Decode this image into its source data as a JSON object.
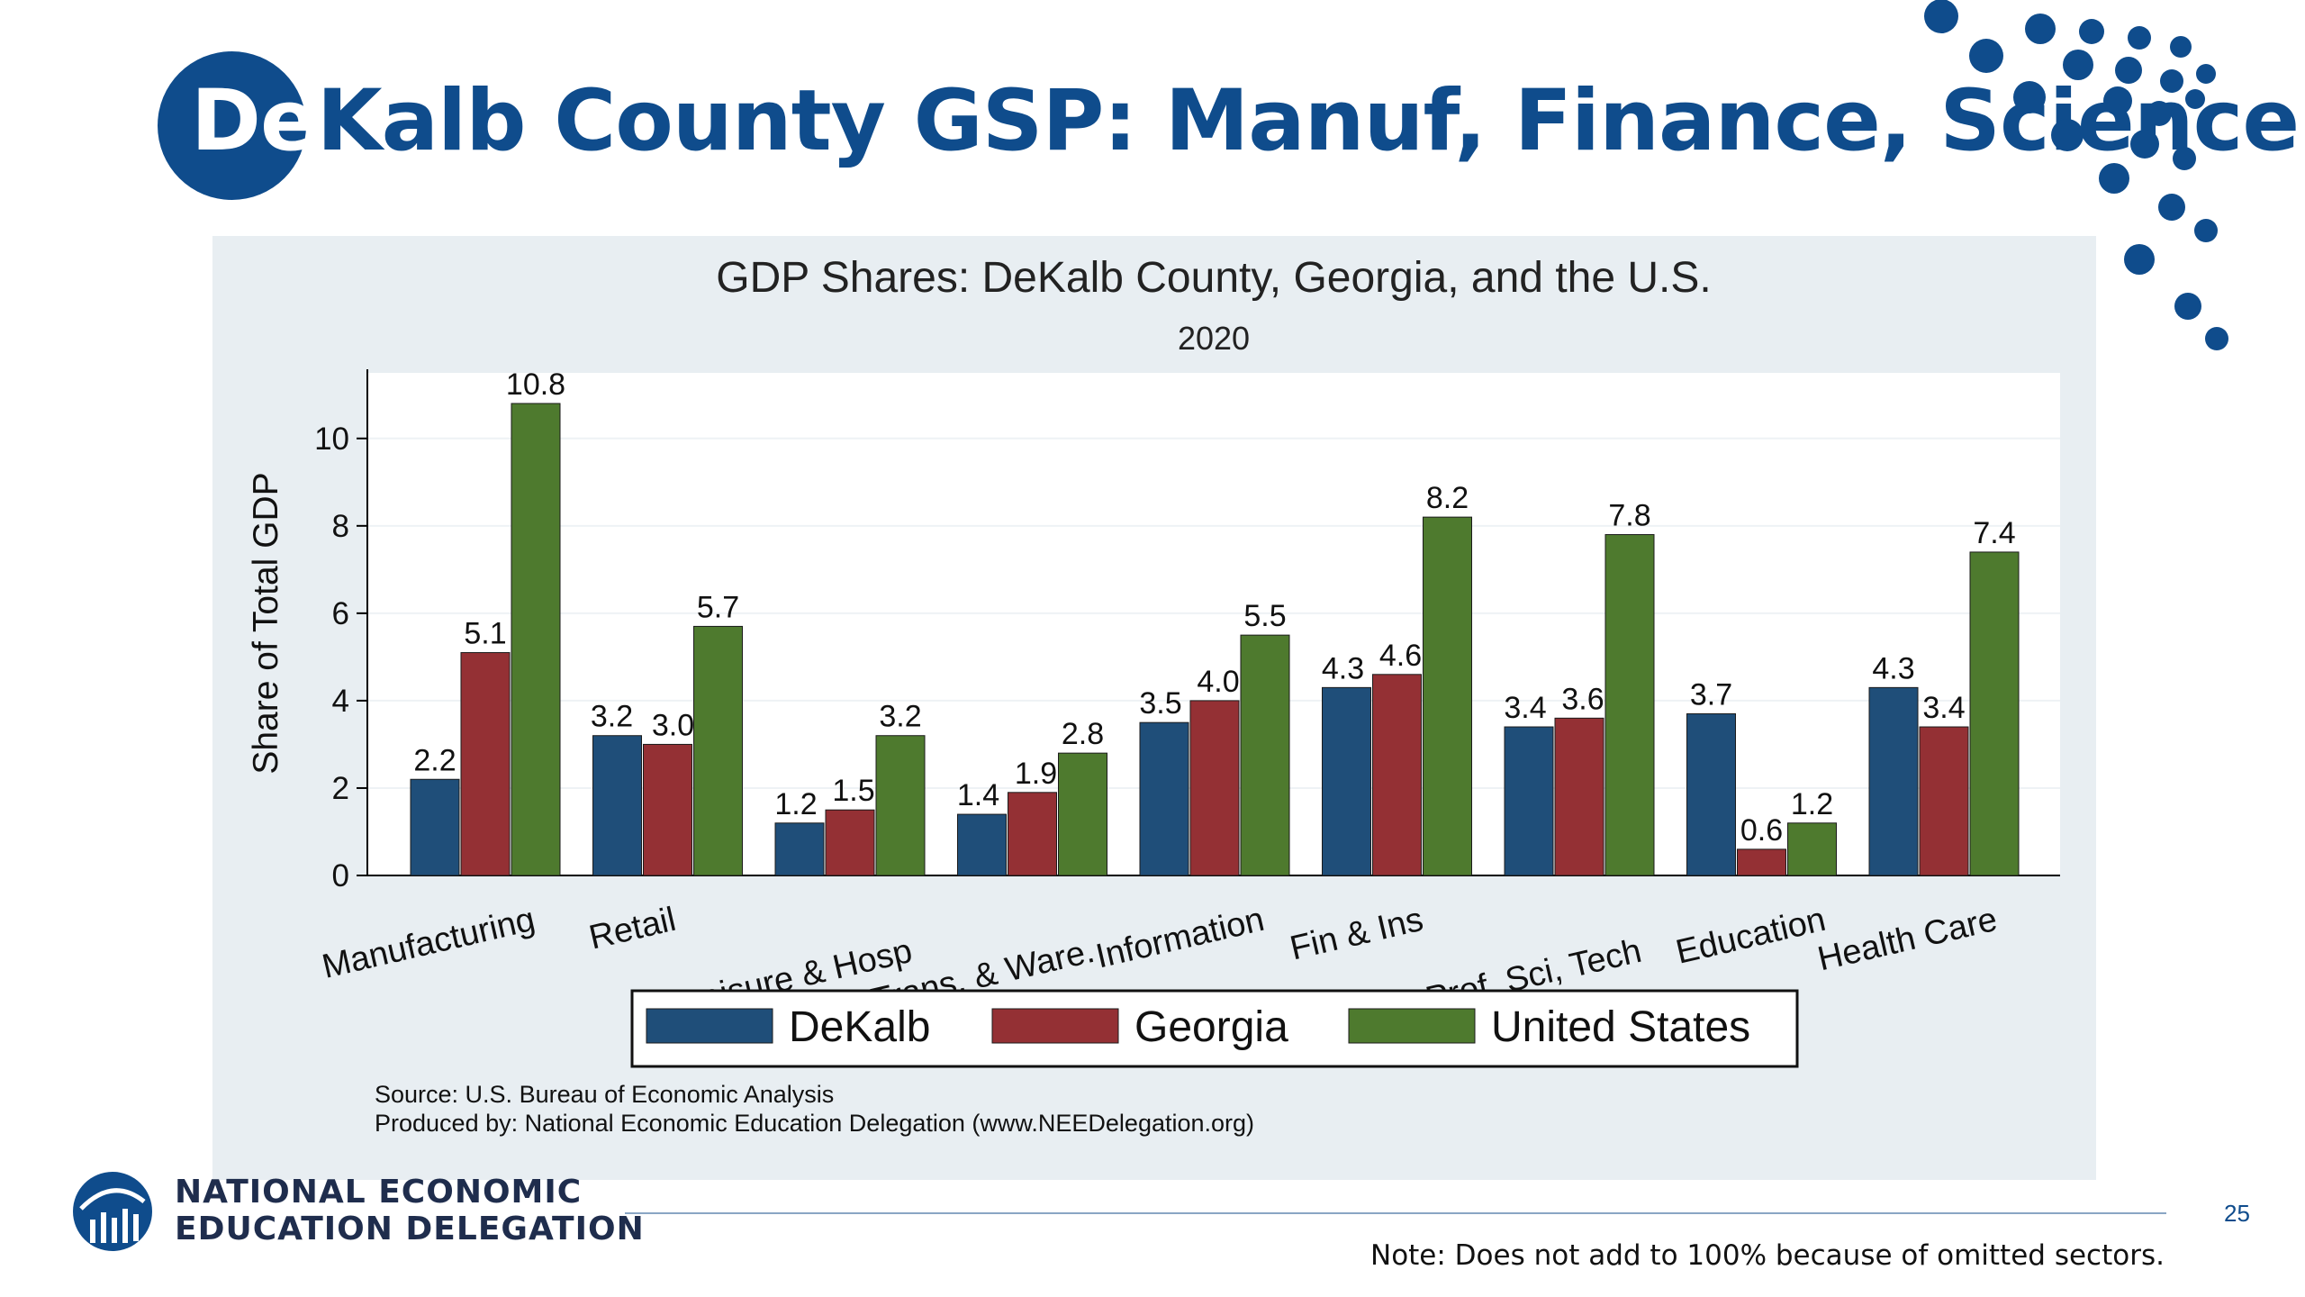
{
  "slide": {
    "title_de": "De",
    "title_rest": "Kalb County GSP: Manuf, Finance, Science",
    "org_line1": "NATIONAL ECONOMIC",
    "org_line2": "EDUCATION DELEGATION",
    "page_number": "25",
    "note": "Note: Does not add to 100% because of omitted sectors.",
    "colors": {
      "brand_blue": "#0f4c8c",
      "panel": "#e8eef2"
    },
    "icons": [
      "dot-pattern-icon",
      "ned-logo-icon"
    ]
  },
  "chart_data": {
    "type": "bar",
    "title": "GDP Shares: DeKalb County, Georgia, and the U.S.",
    "subtitle": "2020",
    "xlabel": "",
    "ylabel": "Share of Total GDP",
    "ylim": [
      0,
      11.5
    ],
    "yticks": [
      0,
      2,
      4,
      6,
      8,
      10
    ],
    "grid": true,
    "legend_position": "bottom",
    "categories": [
      "Manufacturing",
      "Retail",
      "Leisure & Hosp",
      "Trans. & Ware.",
      "Information",
      "Fin & Ins",
      "Prof, Sci, Tech",
      "Education",
      "Health Care"
    ],
    "series": [
      {
        "name": "DeKalb",
        "color": "#1f4e79",
        "values": [
          2.2,
          3.2,
          1.2,
          1.4,
          3.5,
          4.3,
          3.4,
          3.7,
          4.3
        ]
      },
      {
        "name": "Georgia",
        "color": "#943034",
        "values": [
          5.1,
          3.0,
          1.5,
          1.9,
          4.0,
          4.6,
          3.6,
          0.6,
          3.4
        ]
      },
      {
        "name": "United States",
        "color": "#4e7a2e",
        "values": [
          10.8,
          5.7,
          3.2,
          2.8,
          5.5,
          8.2,
          7.8,
          1.2,
          7.4
        ]
      }
    ],
    "source_line1": "Source: U.S. Bureau of Economic Analysis",
    "source_line2": "Produced by: National Economic Education Delegation (www.NEEDelegation.org)"
  }
}
